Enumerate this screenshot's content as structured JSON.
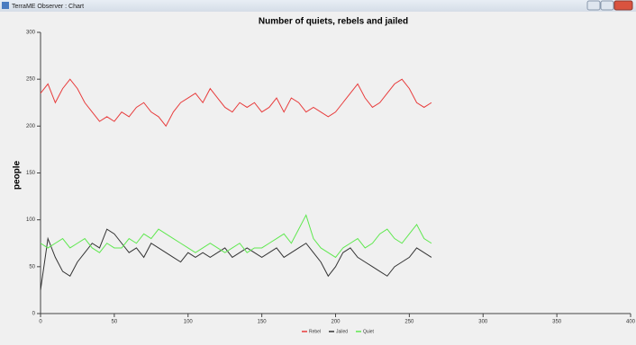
{
  "window": {
    "title": "TerraME Observer : Chart"
  },
  "chart_data": {
    "type": "line",
    "title": "Number of quiets, rebels and jailed",
    "y_label": "people",
    "x": [
      0,
      5,
      10,
      15,
      20,
      25,
      30,
      35,
      40,
      45,
      50,
      55,
      60,
      65,
      70,
      75,
      80,
      85,
      90,
      95,
      100,
      105,
      110,
      115,
      120,
      125,
      130,
      135,
      140,
      145,
      150,
      155,
      160,
      165,
      170,
      175,
      180,
      185,
      190,
      195,
      200,
      205,
      210,
      215,
      220,
      225,
      230,
      235,
      240,
      245,
      250,
      255,
      260,
      265
    ],
    "series": [
      {
        "name": "Rebel",
        "color": "#e83c3c",
        "values": [
          235,
          245,
          225,
          240,
          250,
          240,
          225,
          215,
          205,
          210,
          205,
          215,
          210,
          220,
          225,
          215,
          210,
          200,
          215,
          225,
          230,
          235,
          225,
          240,
          230,
          220,
          215,
          225,
          220,
          225,
          215,
          220,
          230,
          215,
          230,
          225,
          215,
          220,
          215,
          210,
          215,
          225,
          235,
          245,
          230,
          220,
          225,
          235,
          245,
          250,
          240,
          225,
          220,
          225
        ]
      },
      {
        "name": "Jailed",
        "color": "#333333",
        "values": [
          25,
          80,
          60,
          45,
          40,
          55,
          65,
          75,
          70,
          90,
          85,
          75,
          65,
          70,
          60,
          75,
          70,
          65,
          60,
          55,
          65,
          60,
          65,
          60,
          65,
          70,
          60,
          65,
          70,
          65,
          60,
          65,
          70,
          60,
          65,
          70,
          75,
          65,
          55,
          40,
          50,
          65,
          70,
          60,
          55,
          50,
          45,
          40,
          50,
          55,
          60,
          70,
          65,
          60
        ]
      },
      {
        "name": "Quiet",
        "color": "#5fe84f",
        "values": [
          75,
          70,
          75,
          80,
          70,
          75,
          80,
          70,
          65,
          75,
          70,
          70,
          80,
          75,
          85,
          80,
          90,
          85,
          80,
          75,
          70,
          65,
          70,
          75,
          70,
          65,
          70,
          75,
          65,
          70,
          70,
          75,
          80,
          85,
          75,
          90,
          105,
          80,
          70,
          65,
          60,
          70,
          75,
          80,
          70,
          75,
          85,
          90,
          80,
          75,
          85,
          95,
          80,
          75
        ]
      }
    ],
    "xlim": [
      0,
      400
    ],
    "xticks": [
      0,
      50,
      100,
      150,
      200,
      250,
      300,
      350,
      400
    ],
    "ylim": [
      0,
      300
    ],
    "yticks": [
      0,
      50,
      100,
      150,
      200,
      250,
      300
    ],
    "legend": "bottom"
  }
}
